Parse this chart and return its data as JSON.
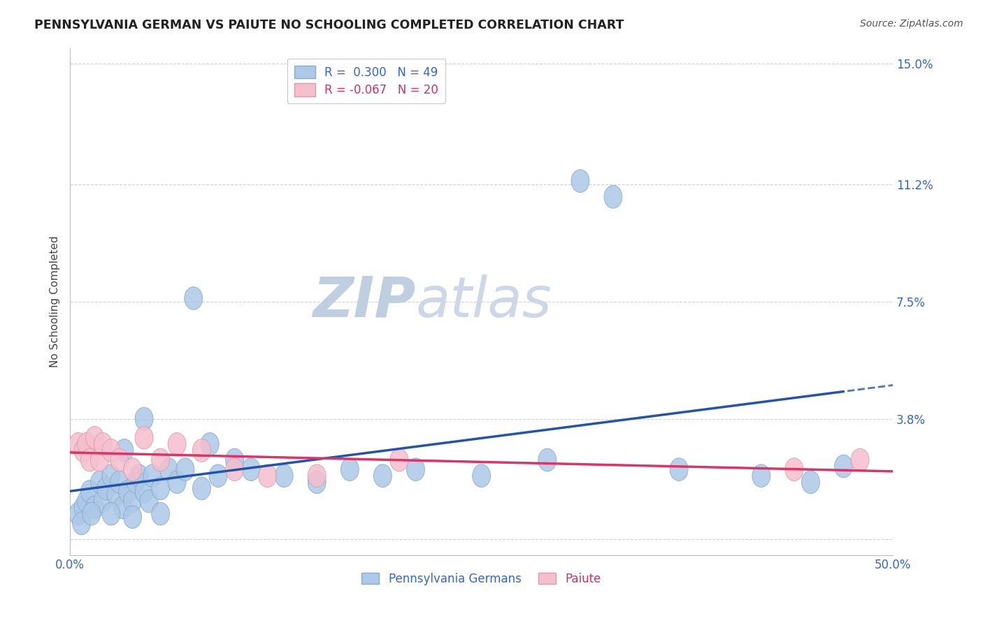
{
  "title": "PENNSYLVANIA GERMAN VS PAIUTE NO SCHOOLING COMPLETED CORRELATION CHART",
  "source": "Source: ZipAtlas.com",
  "ylabel": "No Schooling Completed",
  "xlim": [
    0.0,
    0.5
  ],
  "ylim": [
    -0.005,
    0.155
  ],
  "yticks": [
    0.0,
    0.038,
    0.075,
    0.112,
    0.15
  ],
  "ytick_labels": [
    "",
    "3.8%",
    "7.5%",
    "11.2%",
    "15.0%"
  ],
  "blue_R": 0.3,
  "blue_N": 49,
  "pink_R": -0.067,
  "pink_N": 20,
  "blue_color": "#adc8e8",
  "blue_edge_color": "#88aacc",
  "pink_color": "#f5bfce",
  "pink_edge_color": "#dd9aaa",
  "blue_line_color": "#2255aa",
  "pink_line_color": "#dd3366",
  "watermark_zip": "ZIP",
  "watermark_atlas": "atlas",
  "watermark_color_zip": "#ccd8e8",
  "watermark_color_atlas": "#c8d8e8",
  "legend_blue_label": "Pennsylvania Germans",
  "legend_pink_label": "Paiute",
  "background_color": "#ffffff",
  "grid_color": "#cccccc",
  "blue_x": [
    0.005,
    0.008,
    0.01,
    0.012,
    0.015,
    0.018,
    0.02,
    0.022,
    0.025,
    0.028,
    0.03,
    0.032,
    0.035,
    0.038,
    0.04,
    0.042,
    0.045,
    0.048,
    0.05,
    0.055,
    0.06,
    0.065,
    0.07,
    0.08,
    0.09,
    0.1,
    0.11,
    0.13,
    0.15,
    0.17,
    0.19,
    0.21,
    0.25,
    0.29,
    0.31,
    0.33,
    0.37,
    0.42,
    0.45,
    0.47,
    0.007,
    0.013,
    0.025,
    0.038,
    0.055,
    0.075,
    0.085,
    0.033,
    0.045
  ],
  "blue_y": [
    0.008,
    0.01,
    0.012,
    0.015,
    0.01,
    0.018,
    0.012,
    0.016,
    0.02,
    0.014,
    0.018,
    0.01,
    0.015,
    0.012,
    0.018,
    0.02,
    0.015,
    0.012,
    0.02,
    0.016,
    0.022,
    0.018,
    0.022,
    0.016,
    0.02,
    0.025,
    0.022,
    0.02,
    0.018,
    0.022,
    0.02,
    0.022,
    0.02,
    0.025,
    0.113,
    0.108,
    0.022,
    0.02,
    0.018,
    0.023,
    0.005,
    0.008,
    0.008,
    0.007,
    0.008,
    0.076,
    0.03,
    0.028,
    0.038
  ],
  "pink_x": [
    0.005,
    0.008,
    0.01,
    0.012,
    0.015,
    0.018,
    0.02,
    0.025,
    0.03,
    0.038,
    0.045,
    0.055,
    0.065,
    0.08,
    0.1,
    0.12,
    0.15,
    0.2,
    0.44,
    0.48
  ],
  "pink_y": [
    0.03,
    0.028,
    0.03,
    0.025,
    0.032,
    0.025,
    0.03,
    0.028,
    0.025,
    0.022,
    0.032,
    0.025,
    0.03,
    0.028,
    0.022,
    0.02,
    0.02,
    0.025,
    0.022,
    0.025
  ]
}
